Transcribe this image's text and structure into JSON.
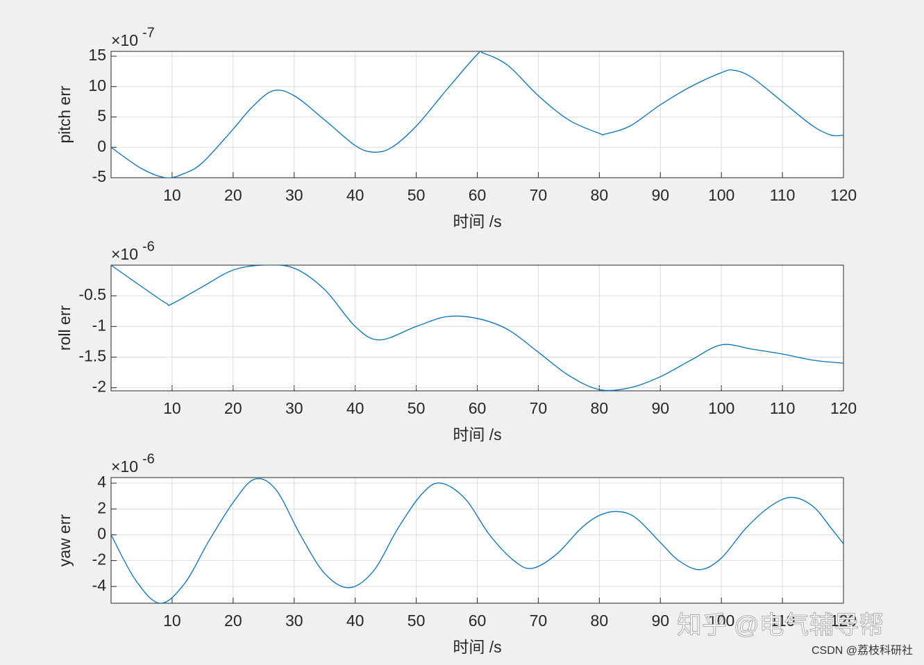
{
  "chart_data": [
    {
      "type": "line",
      "ylabel": "pitch err",
      "xlabel": "时间 /s",
      "color": "#0072bd",
      "grid": true,
      "y_multiplier": {
        "base": "×10",
        "exponent": "-7"
      },
      "xlim": [
        0,
        120
      ],
      "xticks": [
        10,
        20,
        30,
        40,
        50,
        60,
        70,
        80,
        90,
        100,
        110,
        120
      ],
      "ylim": [
        -5,
        15.8
      ],
      "yticks": [
        -5,
        0,
        5,
        10,
        15
      ],
      "x": [
        0,
        5,
        9,
        12,
        15,
        20,
        23,
        26.5,
        30,
        35,
        40,
        43,
        46,
        50,
        55,
        60,
        61,
        65,
        70,
        75,
        80,
        81,
        85,
        90,
        95,
        100,
        102,
        105,
        110,
        115,
        118,
        120
      ],
      "values": [
        0,
        -3.5,
        -5,
        -4.3,
        -2.5,
        3,
        6.5,
        9.3,
        8.5,
        4.5,
        0.3,
        -0.8,
        0,
        3.5,
        9.5,
        15.3,
        15.5,
        13.5,
        8.5,
        4.5,
        2.3,
        2.2,
        3.5,
        7,
        10,
        12.3,
        12.7,
        11.5,
        7.5,
        3.5,
        2,
        2
      ]
    },
    {
      "type": "line",
      "ylabel": "roll err",
      "xlabel": "时间 /s",
      "color": "#0072bd",
      "grid": true,
      "y_multiplier": {
        "base": "×10",
        "exponent": "-6"
      },
      "xlim": [
        0,
        120
      ],
      "xticks": [
        10,
        20,
        30,
        40,
        50,
        60,
        70,
        80,
        90,
        100,
        110,
        120
      ],
      "ylim": [
        -2.05,
        0
      ],
      "yticks": [
        -2,
        -1.5,
        -1,
        -0.5
      ],
      "x": [
        0,
        5,
        9,
        10,
        15,
        20,
        25,
        30,
        35,
        40,
        44,
        50,
        55,
        60,
        65,
        70,
        75,
        80,
        85,
        90,
        95,
        100,
        105,
        110,
        115,
        120
      ],
      "values": [
        0,
        -0.35,
        -0.62,
        -0.63,
        -0.35,
        -0.08,
        0,
        -0.05,
        -0.4,
        -1.0,
        -1.22,
        -1.0,
        -0.84,
        -0.87,
        -1.05,
        -1.42,
        -1.8,
        -2.03,
        -2.0,
        -1.82,
        -1.55,
        -1.3,
        -1.37,
        -1.45,
        -1.55,
        -1.6
      ]
    },
    {
      "type": "line",
      "ylabel": "yaw err",
      "xlabel": "时间 /s",
      "color": "#0072bd",
      "grid": true,
      "y_multiplier": {
        "base": "×10",
        "exponent": "-6"
      },
      "xlim": [
        0,
        120
      ],
      "xticks": [
        10,
        20,
        30,
        40,
        50,
        60,
        70,
        80,
        90,
        100,
        110,
        120
      ],
      "ylim": [
        -5.3,
        4.43
      ],
      "yticks": [
        -4,
        -2,
        0,
        2,
        4
      ],
      "x": [
        0,
        4,
        8,
        12,
        16,
        20,
        23.5,
        27,
        31,
        35,
        39,
        43,
        47,
        51,
        54,
        58,
        62,
        66,
        69,
        73,
        77,
        80,
        83,
        86,
        90,
        93,
        96.5,
        100,
        104,
        108,
        111.5,
        115,
        118,
        120
      ],
      "values": [
        0,
        -3.5,
        -5.3,
        -3.8,
        -0.5,
        2.5,
        4.3,
        3.5,
        0,
        -3,
        -4.1,
        -2.8,
        0.5,
        3.2,
        4,
        2.8,
        0,
        -2,
        -2.6,
        -1.5,
        0.5,
        1.5,
        1.8,
        1.3,
        -0.6,
        -2,
        -2.7,
        -1.8,
        0.5,
        2.2,
        2.9,
        2.2,
        0.5,
        -0.7
      ]
    }
  ],
  "watermarks": [
    "知乎 @电气辅导帮",
    "CSDN @荔枝科研社"
  ]
}
